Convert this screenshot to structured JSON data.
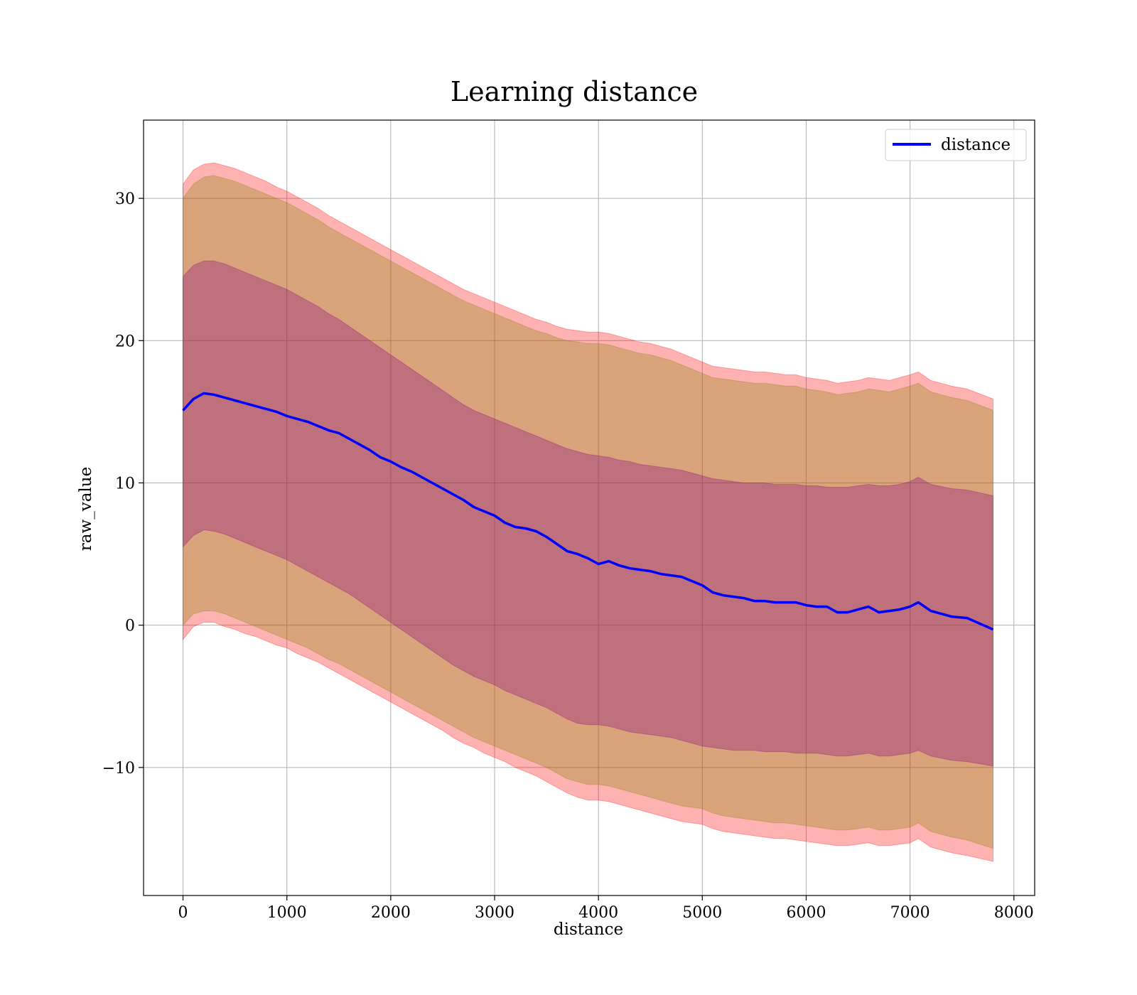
{
  "chart_data": {
    "type": "line",
    "title": "Learning distance",
    "xlabel": "distance",
    "ylabel": "raw_value",
    "xlim": [
      -380,
      8200
    ],
    "ylim": [
      -19,
      35.5
    ],
    "xticks": [
      0,
      1000,
      2000,
      3000,
      4000,
      5000,
      6000,
      7000,
      8000
    ],
    "xtick_labels": [
      "0",
      "1000",
      "2000",
      "3000",
      "4000",
      "5000",
      "6000",
      "7000",
      "8000"
    ],
    "yticks": [
      -10,
      0,
      10,
      20,
      30
    ],
    "ytick_labels": [
      "−10",
      "0",
      "10",
      "20",
      "30"
    ],
    "grid": true,
    "legend": {
      "position": "upper right",
      "entries": [
        "distance"
      ]
    },
    "colors": {
      "line": "#0000ff",
      "outer_band": "#ff0000",
      "middle_band": "#808000",
      "inner_band": "#800080",
      "grid": "#b0b0b0"
    },
    "series": [
      {
        "name": "distance",
        "x": [
          0,
          100,
          200,
          300,
          400,
          500,
          600,
          700,
          800,
          900,
          1000,
          1100,
          1200,
          1300,
          1400,
          1500,
          1600,
          1700,
          1800,
          1900,
          2000,
          2100,
          2200,
          2300,
          2400,
          2500,
          2600,
          2700,
          2800,
          2900,
          3000,
          3100,
          3200,
          3300,
          3400,
          3500,
          3600,
          3700,
          3800,
          3900,
          4000,
          4100,
          4200,
          4300,
          4400,
          4500,
          4600,
          4700,
          4800,
          4900,
          5000,
          5100,
          5200,
          5300,
          5400,
          5500,
          5600,
          5700,
          5800,
          5900,
          6000,
          6100,
          6200,
          6300,
          6400,
          6500,
          6600,
          6700,
          6800,
          6900,
          7000,
          7080,
          7200,
          7400,
          7550,
          7800
        ],
        "y": [
          15.1,
          15.9,
          16.3,
          16.2,
          16.0,
          15.8,
          15.6,
          15.4,
          15.2,
          15.0,
          14.7,
          14.5,
          14.3,
          14.0,
          13.7,
          13.5,
          13.1,
          12.7,
          12.3,
          11.8,
          11.5,
          11.1,
          10.8,
          10.4,
          10.0,
          9.6,
          9.2,
          8.8,
          8.3,
          8.0,
          7.7,
          7.2,
          6.9,
          6.8,
          6.6,
          6.2,
          5.7,
          5.2,
          5.0,
          4.7,
          4.3,
          4.5,
          4.2,
          4.0,
          3.9,
          3.8,
          3.6,
          3.5,
          3.4,
          3.1,
          2.8,
          2.3,
          2.1,
          2.0,
          1.9,
          1.7,
          1.7,
          1.6,
          1.6,
          1.6,
          1.4,
          1.3,
          1.3,
          0.9,
          0.9,
          1.1,
          1.3,
          0.9,
          1.0,
          1.1,
          1.3,
          1.6,
          1.0,
          0.6,
          0.5,
          -0.3
        ]
      },
      {
        "name": "",
        "kind": "band",
        "color": "outer_band",
        "lower": [
          -1.0,
          -0.1,
          0.2,
          0.2,
          -0.1,
          -0.3,
          -0.6,
          -0.8,
          -1.1,
          -1.4,
          -1.6,
          -2.0,
          -2.3,
          -2.6,
          -3.0,
          -3.4,
          -3.8,
          -4.2,
          -4.6,
          -5.0,
          -5.4,
          -5.8,
          -6.2,
          -6.6,
          -7.0,
          -7.4,
          -7.9,
          -8.3,
          -8.6,
          -9.0,
          -9.3,
          -9.6,
          -10.0,
          -10.3,
          -10.6,
          -11.0,
          -11.4,
          -11.8,
          -12.1,
          -12.3,
          -12.3,
          -12.4,
          -12.6,
          -12.8,
          -13.0,
          -13.2,
          -13.4,
          -13.6,
          -13.8,
          -13.9,
          -14.0,
          -14.3,
          -14.5,
          -14.6,
          -14.7,
          -14.8,
          -14.9,
          -15.0,
          -15.0,
          -15.1,
          -15.2,
          -15.3,
          -15.4,
          -15.5,
          -15.5,
          -15.4,
          -15.3,
          -15.5,
          -15.5,
          -15.4,
          -15.3,
          -15.0,
          -15.6,
          -16.0,
          -16.2,
          -16.6
        ],
        "upper": [
          31.0,
          32.0,
          32.4,
          32.5,
          32.3,
          32.1,
          31.8,
          31.5,
          31.2,
          30.8,
          30.5,
          30.1,
          29.7,
          29.3,
          28.8,
          28.4,
          28.0,
          27.6,
          27.2,
          26.8,
          26.4,
          26.0,
          25.6,
          25.2,
          24.8,
          24.4,
          24.0,
          23.6,
          23.3,
          23.0,
          22.7,
          22.4,
          22.1,
          21.8,
          21.5,
          21.3,
          21.0,
          20.8,
          20.7,
          20.6,
          20.6,
          20.5,
          20.3,
          20.1,
          19.9,
          19.8,
          19.6,
          19.4,
          19.1,
          18.8,
          18.5,
          18.2,
          18.1,
          18.0,
          17.9,
          17.8,
          17.8,
          17.7,
          17.6,
          17.6,
          17.4,
          17.3,
          17.2,
          17.0,
          17.1,
          17.2,
          17.4,
          17.3,
          17.2,
          17.4,
          17.6,
          17.8,
          17.2,
          16.8,
          16.6,
          15.9
        ]
      },
      {
        "name": "",
        "kind": "band",
        "color": "middle_band",
        "lower": [
          0.0,
          0.8,
          1.0,
          1.0,
          0.8,
          0.5,
          0.2,
          -0.1,
          -0.4,
          -0.7,
          -1.0,
          -1.3,
          -1.6,
          -2.0,
          -2.4,
          -2.7,
          -3.1,
          -3.5,
          -3.9,
          -4.3,
          -4.7,
          -5.1,
          -5.5,
          -5.9,
          -6.3,
          -6.7,
          -7.1,
          -7.5,
          -7.9,
          -8.2,
          -8.5,
          -8.8,
          -9.1,
          -9.4,
          -9.7,
          -10.0,
          -10.4,
          -10.8,
          -11.0,
          -11.2,
          -11.2,
          -11.3,
          -11.5,
          -11.7,
          -11.9,
          -12.1,
          -12.3,
          -12.5,
          -12.7,
          -12.8,
          -12.9,
          -13.2,
          -13.4,
          -13.5,
          -13.6,
          -13.7,
          -13.8,
          -13.9,
          -13.9,
          -14.0,
          -14.1,
          -14.2,
          -14.3,
          -14.4,
          -14.4,
          -14.3,
          -14.2,
          -14.4,
          -14.4,
          -14.3,
          -14.2,
          -13.9,
          -14.5,
          -14.9,
          -15.1,
          -15.7
        ],
        "upper": [
          30.0,
          31.0,
          31.5,
          31.6,
          31.4,
          31.2,
          30.9,
          30.6,
          30.3,
          30.0,
          29.7,
          29.3,
          28.9,
          28.5,
          28.0,
          27.6,
          27.2,
          26.8,
          26.4,
          26.0,
          25.6,
          25.2,
          24.8,
          24.4,
          24.0,
          23.6,
          23.2,
          22.8,
          22.5,
          22.2,
          21.9,
          21.6,
          21.3,
          21.0,
          20.7,
          20.5,
          20.2,
          20.0,
          19.9,
          19.8,
          19.8,
          19.7,
          19.5,
          19.3,
          19.1,
          19.0,
          18.8,
          18.6,
          18.3,
          18.0,
          17.7,
          17.4,
          17.3,
          17.2,
          17.1,
          17.0,
          17.0,
          16.9,
          16.8,
          16.8,
          16.6,
          16.5,
          16.4,
          16.2,
          16.3,
          16.4,
          16.6,
          16.5,
          16.4,
          16.6,
          16.8,
          17.0,
          16.4,
          16.0,
          15.8,
          15.1
        ]
      },
      {
        "name": "",
        "kind": "band",
        "color": "inner_band",
        "lower": [
          5.5,
          6.3,
          6.7,
          6.6,
          6.4,
          6.1,
          5.8,
          5.5,
          5.2,
          4.9,
          4.6,
          4.2,
          3.8,
          3.4,
          3.0,
          2.6,
          2.2,
          1.7,
          1.2,
          0.7,
          0.2,
          -0.3,
          -0.8,
          -1.3,
          -1.8,
          -2.3,
          -2.8,
          -3.2,
          -3.6,
          -3.9,
          -4.2,
          -4.6,
          -4.9,
          -5.2,
          -5.5,
          -5.8,
          -6.2,
          -6.6,
          -6.9,
          -7.0,
          -7.0,
          -7.1,
          -7.3,
          -7.5,
          -7.6,
          -7.7,
          -7.8,
          -7.9,
          -8.1,
          -8.3,
          -8.5,
          -8.6,
          -8.7,
          -8.8,
          -8.8,
          -8.8,
          -8.9,
          -8.9,
          -8.9,
          -9.0,
          -9.0,
          -9.0,
          -9.1,
          -9.2,
          -9.2,
          -9.1,
          -9.0,
          -9.2,
          -9.2,
          -9.1,
          -9.0,
          -8.8,
          -9.2,
          -9.5,
          -9.6,
          -9.9
        ],
        "upper": [
          24.5,
          25.3,
          25.6,
          25.6,
          25.4,
          25.1,
          24.8,
          24.5,
          24.2,
          23.9,
          23.6,
          23.2,
          22.8,
          22.4,
          21.9,
          21.5,
          21.0,
          20.5,
          20.0,
          19.5,
          19.0,
          18.5,
          18.0,
          17.5,
          17.0,
          16.5,
          16.0,
          15.5,
          15.1,
          14.8,
          14.5,
          14.2,
          13.9,
          13.6,
          13.3,
          13.0,
          12.7,
          12.4,
          12.2,
          12.0,
          11.9,
          11.8,
          11.6,
          11.5,
          11.3,
          11.2,
          11.1,
          11.0,
          10.9,
          10.7,
          10.5,
          10.3,
          10.2,
          10.1,
          10.0,
          10.0,
          10.0,
          9.9,
          9.9,
          9.9,
          9.8,
          9.8,
          9.7,
          9.7,
          9.7,
          9.8,
          9.9,
          9.8,
          9.8,
          9.9,
          10.1,
          10.4,
          9.9,
          9.6,
          9.5,
          9.1
        ]
      }
    ]
  }
}
